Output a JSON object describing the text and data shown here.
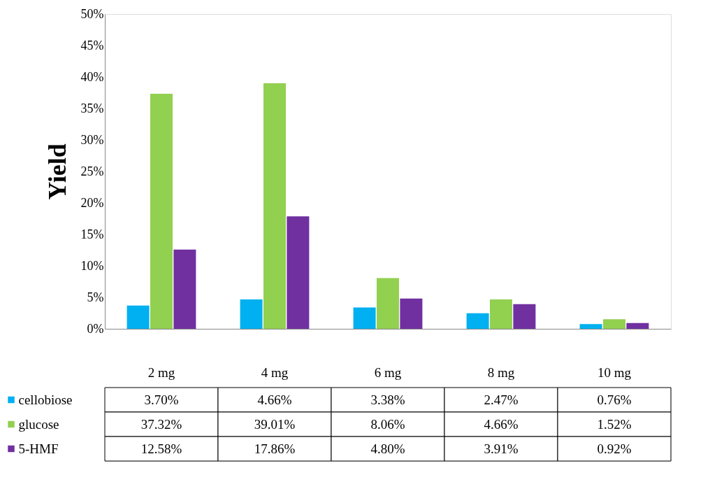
{
  "chart_data": {
    "type": "bar",
    "ylabel": "Yield",
    "categories": [
      "2 mg",
      "4 mg",
      "6 mg",
      "8 mg",
      "10 mg"
    ],
    "legend": "bottom left",
    "ylim": [
      0,
      50
    ],
    "yticks": [
      {
        "value": 0,
        "label": "0%"
      },
      {
        "value": 5,
        "label": "5%"
      },
      {
        "value": 10,
        "label": "10%"
      },
      {
        "value": 15,
        "label": "15%"
      },
      {
        "value": 20,
        "label": "20%"
      },
      {
        "value": 25,
        "label": "25%"
      },
      {
        "value": 30,
        "label": "30%"
      },
      {
        "value": 35,
        "label": "35%"
      },
      {
        "value": 40,
        "label": "40%"
      },
      {
        "value": 45,
        "label": "45%"
      },
      {
        "value": 50,
        "label": "50%"
      }
    ],
    "series": [
      {
        "name": "cellobiose",
        "color": "#00b0f0",
        "values": [
          3.7,
          4.66,
          3.38,
          2.47,
          0.76
        ],
        "value_labels": [
          "3.70%",
          "4.66%",
          "3.38%",
          "2.47%",
          "0.76%"
        ]
      },
      {
        "name": "glucose",
        "color": "#92d050",
        "values": [
          37.32,
          39.01,
          8.06,
          4.66,
          1.52
        ],
        "value_labels": [
          "37.32%",
          "39.01%",
          "8.06%",
          "4.66%",
          "1.52%"
        ]
      },
      {
        "name": "5-HMF",
        "color": "#7030a0",
        "values": [
          12.58,
          17.86,
          4.8,
          3.91,
          0.92
        ],
        "value_labels": [
          "12.58%",
          "17.86%",
          "4.80%",
          "3.91%",
          "0.92%"
        ]
      }
    ]
  }
}
